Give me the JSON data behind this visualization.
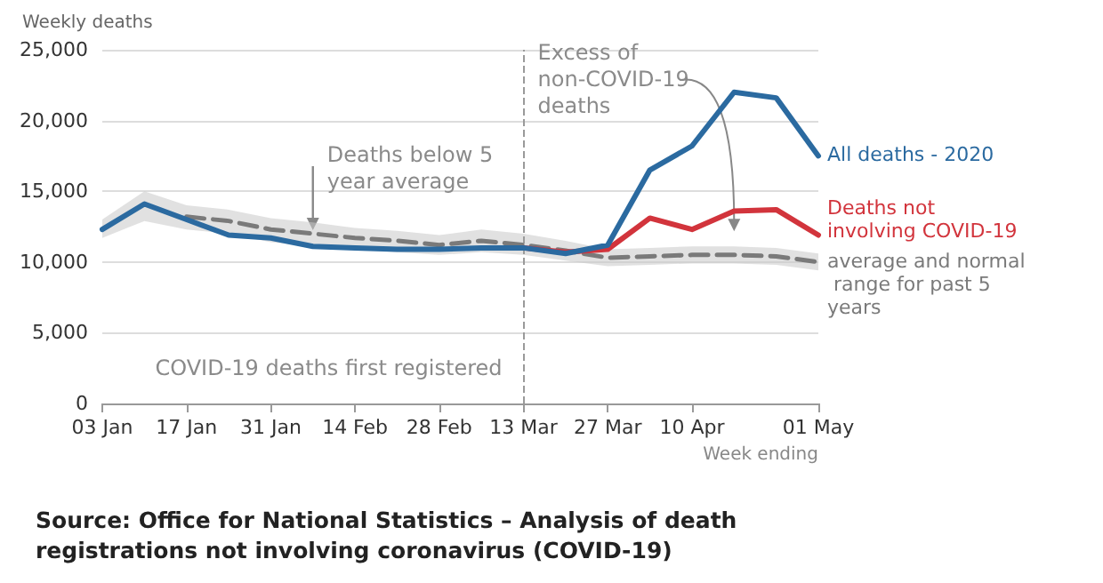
{
  "chart_data": {
    "type": "line",
    "ylabel": "Weekly deaths",
    "xlabel": "Week ending",
    "x": [
      "2020-01-03",
      "2020-01-10",
      "2020-01-17",
      "2020-01-24",
      "2020-01-31",
      "2020-02-07",
      "2020-02-14",
      "2020-02-21",
      "2020-02-28",
      "2020-03-06",
      "2020-03-13",
      "2020-03-20",
      "2020-03-27",
      "2020-04-03",
      "2020-04-10",
      "2020-04-17",
      "2020-04-24",
      "2020-05-01"
    ],
    "series": [
      {
        "name": "average and normal range for past 5 years",
        "color": "#7a7a7a",
        "line_style": "dashed",
        "values": [
          null,
          null,
          13200,
          12900,
          12300,
          12000,
          11700,
          11500,
          11200,
          11500,
          11200,
          10800,
          10300,
          10400,
          10500,
          10500,
          10400,
          10000
        ],
        "lower": [
          11700,
          12900,
          12300,
          12000,
          11400,
          11100,
          10900,
          10700,
          10500,
          10700,
          10500,
          10100,
          9700,
          9800,
          9900,
          9900,
          9800,
          9400
        ],
        "upper": [
          13000,
          15000,
          14000,
          13700,
          13100,
          12800,
          12400,
          12200,
          11900,
          12300,
          12000,
          11500,
          10900,
          11000,
          11100,
          11100,
          11000,
          10600
        ]
      },
      {
        "name": "Deaths not involving COVID-19",
        "color": "#d2343c",
        "values": [
          null,
          null,
          null,
          null,
          null,
          null,
          null,
          null,
          null,
          null,
          11000,
          10700,
          10900,
          13100,
          12300,
          13600,
          13700,
          11900
        ]
      },
      {
        "name": "All deaths - 2020",
        "color": "#2b6aa0",
        "values": [
          12300,
          14100,
          13000,
          11900,
          11700,
          11100,
          11000,
          10900,
          10900,
          11000,
          11000,
          10600,
          11200,
          16500,
          18200,
          22000,
          21600,
          17500
        ]
      }
    ],
    "xticks": [
      {
        "value": "2020-01-03",
        "label": "03 Jan"
      },
      {
        "value": "2020-01-17",
        "label": "17 Jan"
      },
      {
        "value": "2020-01-31",
        "label": "31 Jan"
      },
      {
        "value": "2020-02-14",
        "label": "14 Feb"
      },
      {
        "value": "2020-02-28",
        "label": "28 Feb"
      },
      {
        "value": "2020-03-13",
        "label": "13 Mar"
      },
      {
        "value": "2020-03-27",
        "label": "27 Mar"
      },
      {
        "value": "2020-04-10",
        "label": "10 Apr"
      },
      {
        "value": "2020-05-01",
        "label": "01 May"
      }
    ],
    "xlim": [
      "2020-01-03",
      "2020-05-01"
    ],
    "ylim": [
      0,
      25000
    ],
    "yticks": [
      {
        "value": 0,
        "label": "0"
      },
      {
        "value": 5000,
        "label": "5,000"
      },
      {
        "value": 10000,
        "label": "10,000"
      },
      {
        "value": 15000,
        "label": "15,000"
      },
      {
        "value": 20000,
        "label": "20,000"
      },
      {
        "value": 25000,
        "label": "25,000"
      }
    ],
    "grid": "y",
    "legend": false,
    "marker": "none",
    "ref_lines": [
      {
        "axis": "x",
        "value": "2020-03-13",
        "label": "COVID-19 deaths first registered",
        "color": "#9a9a9a",
        "line_style": "dashed"
      }
    ],
    "annotations": [
      {
        "text": "Deaths below 5 year average",
        "x": "2020-02-07",
        "y": 12000
      },
      "Excess of non-COVID-19 deaths",
      "Source: Office for National Statistics – Analysis of death registrations not involving coronavirus (COVID-19)"
    ]
  }
}
